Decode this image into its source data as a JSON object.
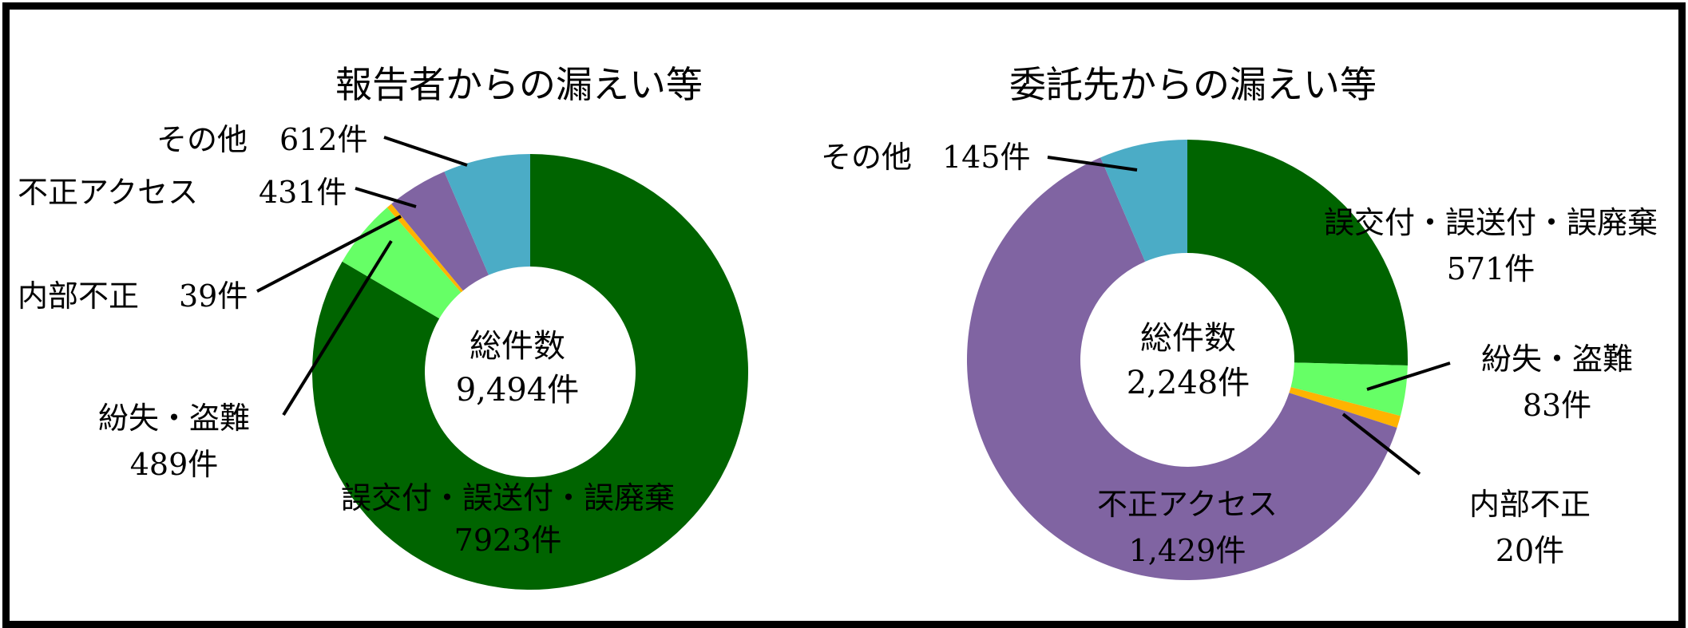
{
  "chart_data": [
    {
      "type": "pie",
      "variant": "donut",
      "title": "報告者からの漏えい等",
      "center_label": "総件数",
      "center_value": "9,494件",
      "slices": [
        {
          "name": "誤交付・誤送付・誤廃棄",
          "value": 7923,
          "label": "7923件",
          "color": "#006400"
        },
        {
          "name": "紛失・盗難",
          "value": 489,
          "label": "489件",
          "color": "#66ff66"
        },
        {
          "name": "内部不正",
          "value": 39,
          "label": "39件",
          "color": "#ffb300"
        },
        {
          "name": "不正アクセス",
          "value": 431,
          "label": "431件",
          "color": "#8064a2"
        },
        {
          "name": "その他",
          "value": 612,
          "label": "612件",
          "color": "#4bacc6"
        }
      ]
    },
    {
      "type": "pie",
      "variant": "donut",
      "title": "委託先からの漏えい等",
      "center_label": "総件数",
      "center_value": "2,248件",
      "slices": [
        {
          "name": "誤交付・誤送付・誤廃棄",
          "value": 571,
          "label": "571件",
          "color": "#006400"
        },
        {
          "name": "紛失・盗難",
          "value": 83,
          "label": "83件",
          "color": "#66ff66"
        },
        {
          "name": "内部不正",
          "value": 20,
          "label": "20件",
          "color": "#ffb300"
        },
        {
          "name": "不正アクセス",
          "value": 1429,
          "label": "1,429件",
          "color": "#8064a2"
        },
        {
          "name": "その他",
          "value": 145,
          "label": "145件",
          "color": "#4bacc6"
        }
      ]
    }
  ]
}
